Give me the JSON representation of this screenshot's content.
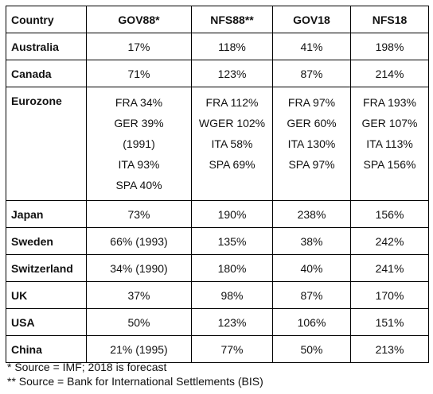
{
  "table": {
    "header": [
      "Country",
      "GOV88*",
      "NFS88**",
      "GOV18",
      "NFS18"
    ],
    "rows": [
      [
        "Australia",
        "17%",
        "118%",
        "41%",
        "198%"
      ],
      [
        "Canada",
        "71%",
        "123%",
        "87%",
        "214%"
      ],
      [
        "Eurozone",
        [
          "FRA 34%",
          "GER 39%",
          "(1991)",
          "ITA 93%",
          "SPA 40%"
        ],
        [
          "FRA 112%",
          "WGER 102%",
          "ITA 58%",
          "SPA 69%"
        ],
        [
          "FRA 97%",
          "GER 60%",
          "ITA 130%",
          "SPA 97%"
        ],
        [
          "FRA 193%",
          "GER 107%",
          "ITA 113%",
          "SPA 156%"
        ]
      ],
      [
        "Japan",
        "73%",
        "190%",
        "238%",
        "156%"
      ],
      [
        "Sweden",
        "66% (1993)",
        "135%",
        "38%",
        "242%"
      ],
      [
        "Switzerland",
        "34% (1990)",
        "180%",
        "40%",
        "241%"
      ],
      [
        "UK",
        "37%",
        "98%",
        "87%",
        "170%"
      ],
      [
        "USA",
        "50%",
        "123%",
        "106%",
        "151%"
      ],
      [
        "China",
        "21% (1995)",
        "77%",
        "50%",
        "213%"
      ]
    ]
  },
  "footnotes": [
    "* Source = IMF; 2018 is forecast",
    "** Source = Bank for International Settlements (BIS)"
  ]
}
